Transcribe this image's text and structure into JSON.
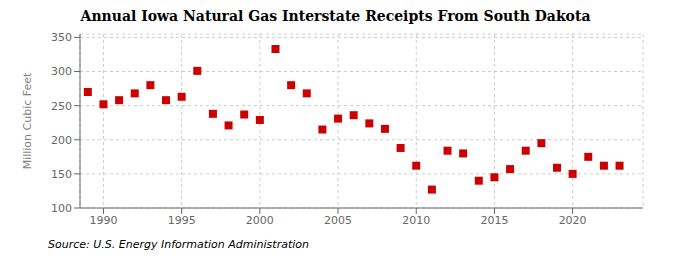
{
  "chart_data": {
    "type": "scatter",
    "title": "Annual Iowa Natural Gas Interstate Receipts From South Dakota",
    "y_label": "Million Cubic Feet",
    "annotation": "Source: U.S. Energy Information Administration",
    "x": [
      1989,
      1990,
      1991,
      1992,
      1993,
      1994,
      1995,
      1996,
      1997,
      1998,
      1999,
      2000,
      2001,
      2002,
      2003,
      2004,
      2005,
      2006,
      2007,
      2008,
      2009,
      2010,
      2011,
      2012,
      2013,
      2014,
      2015,
      2016,
      2017,
      2018,
      2019,
      2020,
      2021,
      2022,
      2023
    ],
    "values": [
      270,
      252,
      258,
      268,
      280,
      258,
      263,
      301,
      238,
      221,
      237,
      229,
      333,
      280,
      268,
      215,
      231,
      236,
      224,
      216,
      188,
      162,
      127,
      184,
      180,
      140,
      145,
      157,
      184,
      195,
      159,
      150,
      175,
      162,
      162
    ],
    "xlim": [
      1988.5,
      2024.5
    ],
    "xticks": [
      1990,
      1995,
      2000,
      2005,
      2010,
      2015,
      2020
    ],
    "ylim": [
      100,
      355
    ],
    "yticks": [
      100,
      150,
      200,
      250,
      300,
      350
    ],
    "color": "#cc0000",
    "marker": "square",
    "grid": true
  }
}
